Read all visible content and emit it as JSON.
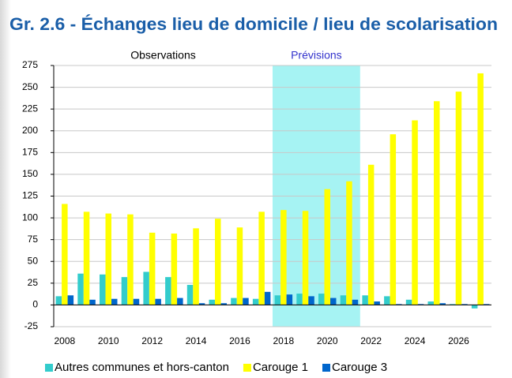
{
  "chart_data": {
    "type": "bar",
    "title": "Gr. 2.6 - Échanges lieu de domicile / lieu de scolarisation",
    "categories": [
      "2008",
      null,
      "2010",
      null,
      "2012",
      null,
      "2014",
      null,
      "2016",
      null,
      "2018",
      null,
      "2020",
      null,
      "2022",
      null,
      "2024",
      null,
      "2026",
      null
    ],
    "series": [
      {
        "name": "Autres communes et hors-canton",
        "color": "#33cccc",
        "values": [
          10,
          36,
          35,
          32,
          38,
          32,
          23,
          6,
          8,
          7,
          11,
          13,
          13,
          11,
          11,
          10,
          6,
          4,
          1,
          -4
        ]
      },
      {
        "name": "Carouge 1",
        "color": "#ffff00",
        "values": [
          116,
          107,
          105,
          104,
          83,
          82,
          88,
          99,
          89,
          107,
          109,
          108,
          133,
          142,
          161,
          196,
          212,
          234,
          245,
          266
        ]
      },
      {
        "name": "Carouge 3",
        "color": "#0066cc",
        "values": [
          11,
          6,
          7,
          7,
          7,
          8,
          2,
          2,
          8,
          15,
          12,
          10,
          8,
          6,
          4,
          1,
          1,
          2,
          1,
          1
        ]
      }
    ],
    "ylim": [
      -25,
      275
    ],
    "yticks": [
      -25,
      0,
      25,
      50,
      75,
      100,
      125,
      150,
      175,
      200,
      225,
      250,
      275
    ],
    "grid": true,
    "legend": "bottom",
    "annotations": [
      {
        "text": "Observations",
        "color": "#000000",
        "start": 0,
        "end": 9
      },
      {
        "text": "Prévisions",
        "color": "#3333cc",
        "start": 10,
        "end": 13,
        "shade": "#a6f3f3"
      }
    ]
  }
}
